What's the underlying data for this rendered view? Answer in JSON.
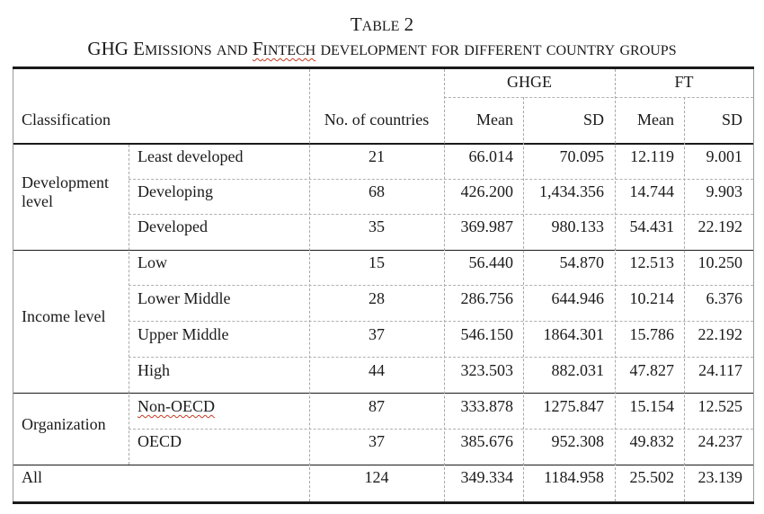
{
  "title": {
    "table_word": "Table",
    "table_number": "2",
    "subtitle_words": [
      {
        "cap": "G",
        "rest": "HG",
        "caps_all": true
      },
      {
        "cap": "E",
        "rest": "missions"
      },
      {
        "cap": "",
        "rest": "and"
      },
      {
        "cap": "F",
        "rest": "intech",
        "squiggle": true
      },
      {
        "cap": "",
        "rest": "development"
      },
      {
        "cap": "",
        "rest": "for"
      },
      {
        "cap": "",
        "rest": "different"
      },
      {
        "cap": "",
        "rest": "country"
      },
      {
        "cap": "",
        "rest": "groups"
      }
    ]
  },
  "header": {
    "classification": "Classification",
    "count": "No. of countries",
    "ghge": "GHGE",
    "ft": "FT",
    "mean1": "Mean",
    "sd1": "SD",
    "mean2": "Mean",
    "sd2": "SD"
  },
  "groups": [
    {
      "label_lines": [
        "Development",
        "level"
      ]
    },
    {
      "label_lines": [
        "Income level"
      ]
    },
    {
      "label_lines": [
        "Organization"
      ]
    }
  ],
  "rows": [
    {
      "sub": "Least developed",
      "n": "21",
      "gm": "66.014",
      "gsd": "70.095",
      "fm": "12.119",
      "fsd": "9.001"
    },
    {
      "sub": "Developing",
      "n": "68",
      "gm": "426.200",
      "gsd": "1,434.356",
      "fm": "14.744",
      "fsd": "9.903"
    },
    {
      "sub": "Developed",
      "n": "35",
      "gm": "369.987",
      "gsd": "980.133",
      "fm": "54.431",
      "fsd": "22.192"
    },
    {
      "sub": "Low",
      "n": "15",
      "gm": "56.440",
      "gsd": "54.870",
      "fm": "12.513",
      "fsd": "10.250"
    },
    {
      "sub": "Lower Middle",
      "n": "28",
      "gm": "286.756",
      "gsd": "644.946",
      "fm": "10.214",
      "fsd": "6.376"
    },
    {
      "sub": "Upper Middle",
      "n": "37",
      "gm": "546.150",
      "gsd": "1864.301",
      "fm": "15.786",
      "fsd": "22.192"
    },
    {
      "sub": "High",
      "n": "44",
      "gm": "323.503",
      "gsd": "882.031",
      "fm": "47.827",
      "fsd": "24.117"
    },
    {
      "sub": "Non-OECD",
      "n": "87",
      "gm": "333.878",
      "gsd": "1275.847",
      "fm": "15.154",
      "fsd": "12.525"
    },
    {
      "sub": "OECD",
      "n": "37",
      "gm": "385.676",
      "gsd": "952.308",
      "fm": "49.832",
      "fsd": "24.237"
    }
  ],
  "all_row": {
    "label": "All",
    "n": "124",
    "gm": "349.334",
    "gsd": "1184.958",
    "fm": "25.502",
    "fsd": "23.139"
  }
}
